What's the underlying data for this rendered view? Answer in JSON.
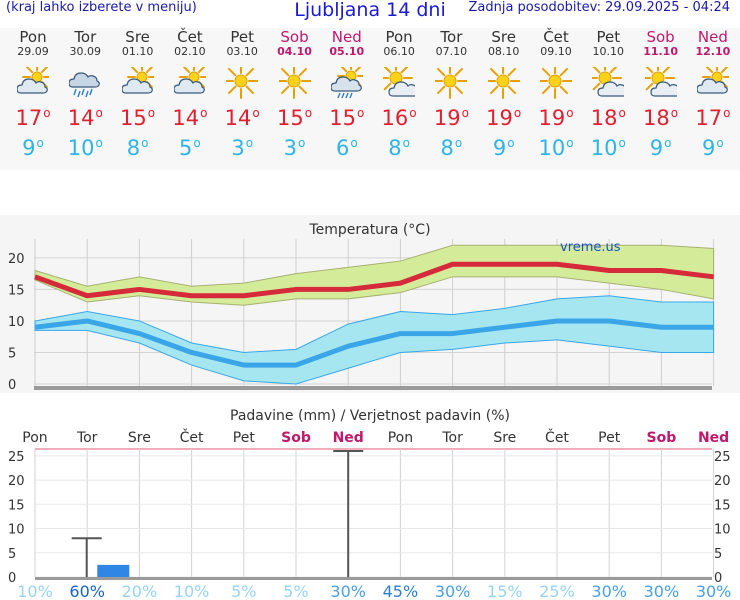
{
  "header": {
    "menu_hint": "(kraj lahko izberete v meniju)",
    "title": "Ljubljana 14 dni",
    "updated": "Zadnja posodobitev: 29.09.2025 - 04:24"
  },
  "days": [
    {
      "name": "Pon",
      "date": "29.09",
      "weekend": false,
      "icon": "partly-cloudy-icon",
      "max": "17",
      "min": "9"
    },
    {
      "name": "Tor",
      "date": "30.09",
      "weekend": false,
      "icon": "rain-cloud-icon",
      "max": "14",
      "min": "10"
    },
    {
      "name": "Sre",
      "date": "01.10",
      "weekend": false,
      "icon": "partly-cloudy-icon",
      "max": "15",
      "min": "8"
    },
    {
      "name": "Čet",
      "date": "02.10",
      "weekend": false,
      "icon": "partly-cloudy-icon",
      "max": "14",
      "min": "5"
    },
    {
      "name": "Pet",
      "date": "03.10",
      "weekend": false,
      "icon": "sun-icon",
      "max": "14",
      "min": "3"
    },
    {
      "name": "Sob",
      "date": "04.10",
      "weekend": true,
      "icon": "sun-icon",
      "max": "15",
      "min": "3"
    },
    {
      "name": "Ned",
      "date": "05.10",
      "weekend": true,
      "icon": "sun-rain-cloud-icon",
      "max": "15",
      "min": "6"
    },
    {
      "name": "Pon",
      "date": "06.10",
      "weekend": false,
      "icon": "sun-cloud-icon",
      "max": "16",
      "min": "8"
    },
    {
      "name": "Tor",
      "date": "07.10",
      "weekend": false,
      "icon": "sun-icon",
      "max": "19",
      "min": "8"
    },
    {
      "name": "Sre",
      "date": "08.10",
      "weekend": false,
      "icon": "sun-icon",
      "max": "19",
      "min": "9"
    },
    {
      "name": "Čet",
      "date": "09.10",
      "weekend": false,
      "icon": "sun-icon",
      "max": "19",
      "min": "10"
    },
    {
      "name": "Pet",
      "date": "10.10",
      "weekend": false,
      "icon": "sun-cloud-icon",
      "max": "18",
      "min": "10"
    },
    {
      "name": "Sob",
      "date": "11.10",
      "weekend": true,
      "icon": "sun-cloud-icon",
      "max": "18",
      "min": "9"
    },
    {
      "name": "Ned",
      "date": "12.10",
      "weekend": true,
      "icon": "partly-cloudy-icon",
      "max": "17",
      "min": "9"
    }
  ],
  "colors": {
    "max_line": "#d42a3a",
    "max_band": "#d4ec9a",
    "min_line": "#3aa6e8",
    "min_band": "#a6e6f0",
    "precip_bar": "#2f86e4",
    "prob_high": "#1763c8",
    "prob_low": "#98d4f2",
    "weekend": "#c0186b"
  },
  "chart_data": [
    {
      "type": "line",
      "title": "Temperatura (°C)",
      "watermark": "vreme.us",
      "ylim": [
        0,
        23
      ],
      "yticks": [
        0,
        5,
        10,
        15,
        20
      ],
      "series": [
        {
          "name": "max",
          "values": [
            17,
            14,
            15,
            14,
            14,
            15,
            15,
            16,
            19,
            19,
            19,
            18,
            18,
            17
          ],
          "band_low": [
            16.5,
            13,
            14,
            13,
            12.5,
            13.5,
            13.5,
            14.5,
            17,
            17,
            17,
            16,
            15,
            13.5
          ],
          "band_high": [
            18,
            15.5,
            17,
            15.5,
            16,
            17.5,
            18.5,
            19.5,
            22,
            22,
            22,
            22,
            22,
            21.5
          ]
        },
        {
          "name": "min",
          "values": [
            9,
            10,
            8,
            5,
            3,
            3,
            6,
            8,
            8,
            9,
            10,
            10,
            9,
            9
          ],
          "band_low": [
            8.5,
            8.5,
            6.5,
            3,
            0.5,
            0,
            2.5,
            5,
            5.5,
            6.5,
            7,
            6,
            5,
            5
          ],
          "band_high": [
            10,
            11.5,
            10,
            6.5,
            5,
            5.5,
            9.5,
            11.5,
            11,
            12,
            13.5,
            14,
            13,
            13
          ]
        }
      ]
    },
    {
      "type": "bar",
      "title": "Padavine (mm) / Verjetnost padavin (%)",
      "ylim": [
        0,
        26
      ],
      "yticks": [
        0,
        5,
        10,
        15,
        20,
        25
      ],
      "categories": [
        "Pon",
        "Tor",
        "Sre",
        "Čet",
        "Pet",
        "Sob",
        "Ned",
        "Pon",
        "Tor",
        "Sre",
        "Čet",
        "Pet",
        "Sob",
        "Ned"
      ],
      "values": [
        0,
        2.5,
        0,
        0,
        0,
        0,
        0,
        0,
        0,
        0,
        0,
        0,
        0,
        0
      ],
      "error_high": [
        0,
        8,
        0,
        0,
        0,
        0,
        26,
        0,
        0,
        0,
        0,
        0,
        0,
        0
      ],
      "probability": [
        "10%",
        "60%",
        "20%",
        "10%",
        "5%",
        "5%",
        "30%",
        "45%",
        "30%",
        "15%",
        "25%",
        "30%",
        "30%",
        "30%"
      ],
      "probability_values": [
        10,
        60,
        20,
        10,
        5,
        5,
        30,
        45,
        30,
        15,
        25,
        30,
        30,
        30
      ]
    }
  ]
}
